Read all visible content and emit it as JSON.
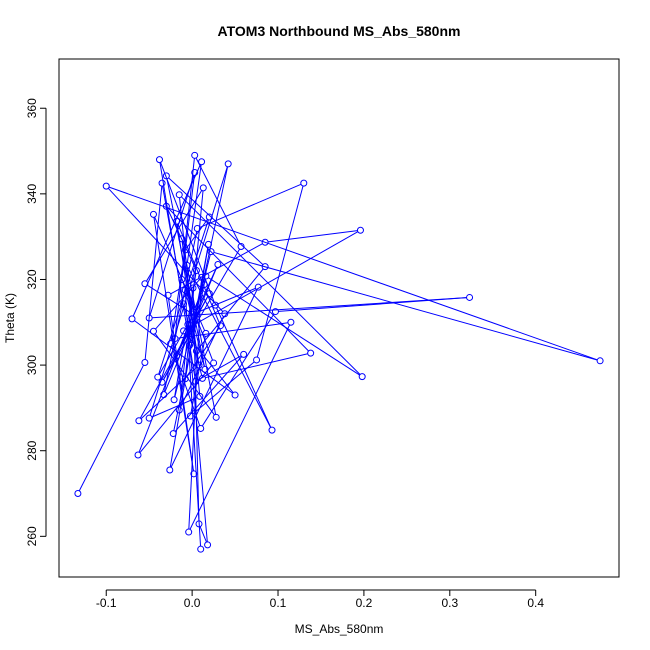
{
  "chart_data": {
    "type": "scatter",
    "title": "ATOM3 Northbound MS_Abs_580nm",
    "xlabel": "MS_Abs_580nm",
    "ylabel": "Theta (K)",
    "xlim": [
      -0.155,
      0.497
    ],
    "ylim": [
      250.5,
      371.5
    ],
    "x_ticks": [
      -0.1,
      0.0,
      0.1,
      0.2,
      0.3,
      0.4
    ],
    "x_tick_labels": [
      "-0.1",
      "0.0",
      "0.1",
      "0.2",
      "0.3",
      "0.4"
    ],
    "y_ticks": [
      260,
      280,
      300,
      320,
      340,
      360
    ],
    "y_tick_labels": [
      "260",
      "280",
      "300",
      "320",
      "340",
      "360"
    ],
    "grid": false,
    "connected": true,
    "marker": "open-circle",
    "color": "#0000ff",
    "points": [
      [
        -0.133,
        270.0
      ],
      [
        -0.055,
        300.6
      ],
      [
        -0.035,
        342.5
      ],
      [
        -0.01,
        314.3
      ],
      [
        0.012,
        296.9
      ],
      [
        0.138,
        302.8
      ],
      [
        -0.03,
        337.1
      ],
      [
        0.005,
        322.1
      ],
      [
        -0.021,
        291.9
      ],
      [
        0.022,
        326.5
      ],
      [
        0.475,
        301.0
      ],
      [
        -0.1,
        341.8
      ],
      [
        0.038,
        312.0
      ],
      [
        -0.015,
        289.5
      ],
      [
        0.001,
        318.0
      ],
      [
        0.008,
        262.9
      ],
      [
        0.018,
        258.0
      ],
      [
        -0.005,
        309.5
      ],
      [
        -0.04,
        297.2
      ],
      [
        0.02,
        334.6
      ],
      [
        -0.008,
        326.9
      ],
      [
        -0.025,
        305.0
      ],
      [
        0.01,
        285.2
      ],
      [
        0.097,
        312.5
      ],
      [
        0.323,
        315.8
      ],
      [
        -0.05,
        311.0
      ],
      [
        0.003,
        345.0
      ],
      [
        -0.012,
        320.0
      ],
      [
        0.025,
        300.5
      ],
      [
        -0.063,
        279.0
      ],
      [
        0.014,
        318.8
      ],
      [
        -0.018,
        302.2
      ],
      [
        0.03,
        323.5
      ],
      [
        -0.033,
        293.1
      ],
      [
        0.006,
        331.9
      ],
      [
        0.13,
        342.5
      ],
      [
        0.075,
        301.2
      ],
      [
        -0.002,
        288.1
      ],
      [
        0.016,
        307.4
      ],
      [
        -0.045,
        335.2
      ],
      [
        0.002,
        274.6
      ],
      [
        -0.028,
        316.3
      ],
      [
        0.085,
        328.7
      ],
      [
        0.196,
        331.5
      ],
      [
        -0.01,
        308.0
      ],
      [
        0.05,
        293.0
      ],
      [
        -0.07,
        310.8
      ],
      [
        0.011,
        347.5
      ],
      [
        -0.006,
        323.3
      ],
      [
        0.093,
        284.8
      ],
      [
        0.027,
        314.0
      ],
      [
        -0.038,
        348.0
      ],
      [
        0.004,
        296.2
      ],
      [
        0.06,
        302.5
      ],
      [
        -0.022,
        284.0
      ],
      [
        0.016,
        320.8
      ],
      [
        0.198,
        297.3
      ],
      [
        -0.015,
        339.8
      ],
      [
        0.009,
        292.7
      ],
      [
        -0.05,
        287.6
      ],
      [
        0.042,
        347.0
      ],
      [
        -0.003,
        304.6
      ],
      [
        0.019,
        328.2
      ],
      [
        -0.026,
        275.5
      ],
      [
        0.077,
        318.2
      ],
      [
        0.001,
        311.9
      ],
      [
        -0.055,
        319.0
      ],
      [
        0.013,
        341.4
      ],
      [
        -0.008,
        296.8
      ],
      [
        0.033,
        309.2
      ],
      [
        -0.018,
        333.6
      ],
      [
        0.008,
        300.0
      ],
      [
        -0.062,
        287.0
      ],
      [
        0.02,
        316.7
      ],
      [
        -0.035,
        296.0
      ],
      [
        0.057,
        327.7
      ],
      [
        0.003,
        349.0
      ],
      [
        -0.02,
        306.2
      ],
      [
        0.115,
        310.0
      ],
      [
        -0.004,
        261.0
      ],
      [
        0.011,
        320.5
      ],
      [
        -0.045,
        307.9
      ],
      [
        0.028,
        287.8
      ],
      [
        -0.012,
        329.5
      ],
      [
        0.005,
        303.3
      ],
      [
        0.085,
        323.0
      ],
      [
        -0.03,
        344.2
      ],
      [
        0.015,
        299.0
      ],
      [
        -0.008,
        317.5
      ],
      [
        0.01,
        257.0
      ]
    ]
  }
}
